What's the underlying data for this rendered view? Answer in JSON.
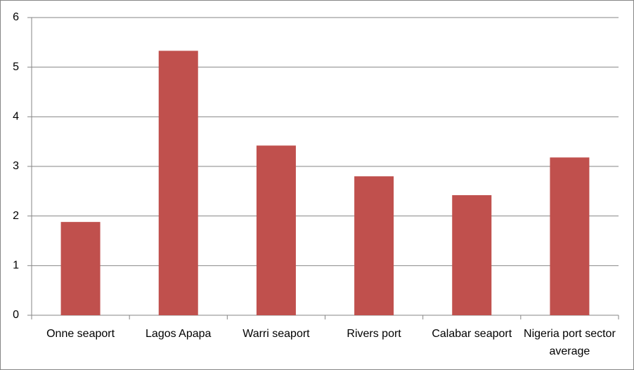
{
  "chart_data": {
    "type": "bar",
    "categories": [
      "Onne seaport",
      "Lagos Apapa",
      "Warri seaport",
      "Rivers port",
      "Calabar seaport",
      "Nigeria port sector average"
    ],
    "values": [
      1.88,
      5.33,
      3.42,
      2.8,
      2.42,
      3.18
    ],
    "color": "#c0504d",
    "ylim": [
      0,
      6
    ],
    "yticks": [
      0,
      1,
      2,
      3,
      4,
      5,
      6
    ],
    "grid": true
  }
}
